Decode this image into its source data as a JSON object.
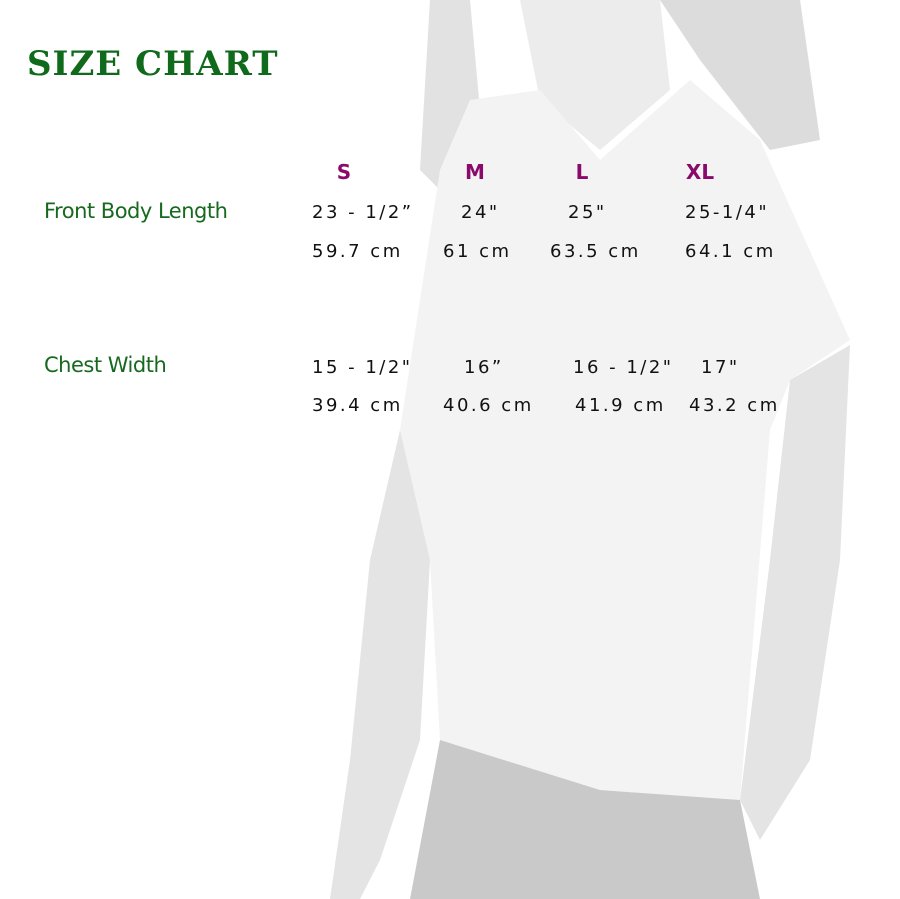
{
  "title": "SIZE CHART",
  "sizes": [
    "S",
    "M",
    "L",
    "XL"
  ],
  "rows": [
    {
      "label": "Front Body Length",
      "inches": [
        "23 - 1/2”",
        "24\"",
        "25\"",
        "25-1/4\""
      ],
      "cm": [
        "59.7 cm",
        "61 cm",
        "63.5 cm",
        "64.1 cm"
      ]
    },
    {
      "label": "Chest Width",
      "inches": [
        "15 - 1/2\"",
        "16”",
        "16 - 1/2\"",
        "17\""
      ],
      "cm": [
        "39.4 cm",
        "40.6 cm",
        "41.9 cm",
        "43.2 cm"
      ]
    }
  ],
  "colors": {
    "title": "#0f6a1c",
    "label": "#17691f",
    "size": "#8a0a6c",
    "value": "#111111"
  }
}
